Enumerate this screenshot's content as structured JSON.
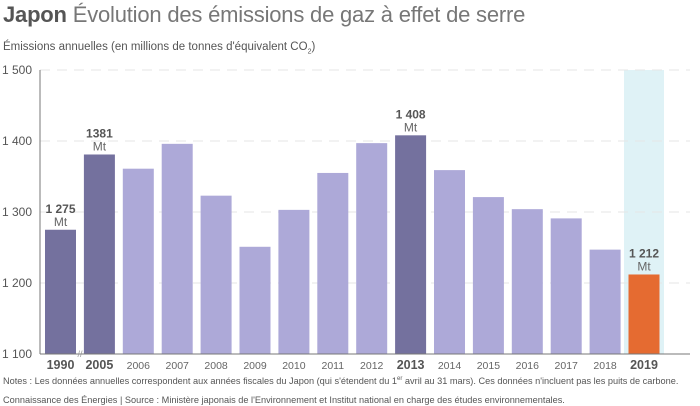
{
  "title": {
    "country": "Japon",
    "text": "Évolution des émissions de gaz à effet de serre"
  },
  "subtitle": {
    "text": "Émissions annuelles (en millions de tonnes d'équivalent CO",
    "subscript": "2",
    "close": ")"
  },
  "notes": {
    "prefix": "Notes : Les données annuelles correspondent aux années fiscales du Japon (qui s'étendent du 1",
    "sup": "er",
    "suffix": " avril au 31 mars). Ces données n'incluent pas les puits de carbone."
  },
  "source": "Connaissance des Énergies | Source : Ministère japonais de l'Environnement et Institut national en charge des études environnementales.",
  "colors": {
    "reference": "#74719e",
    "normal": "#ada9d8",
    "latest": "#e56b31",
    "highlight_band": "#dff2f6",
    "grid": "#e6e6e6",
    "axis": "#777777"
  },
  "chart_data": {
    "type": "bar",
    "title": "Japon Évolution des émissions de gaz à effet de serre",
    "ylabel": "Émissions annuelles (en millions de tonnes d'équivalent CO2)",
    "xlabel": "",
    "ylim": [
      1100,
      1500
    ],
    "yticks": [
      1100,
      1200,
      1300,
      1400,
      1500
    ],
    "ytick_labels": [
      "1 100",
      "1 200",
      "1 300",
      "1 400",
      "1 500"
    ],
    "grid": "horizontal-dashed",
    "axis_break_after": "1990",
    "categories": [
      "1990",
      "2005",
      "2006",
      "2007",
      "2008",
      "2009",
      "2010",
      "2011",
      "2012",
      "2013",
      "2014",
      "2015",
      "2016",
      "2017",
      "2018",
      "2019"
    ],
    "values": [
      1275,
      1381,
      1361,
      1396,
      1323,
      1251,
      1303,
      1355,
      1397,
      1408,
      1359,
      1321,
      1304,
      1291,
      1247,
      1212
    ],
    "bar_kind": [
      "reference",
      "reference",
      "normal",
      "normal",
      "normal",
      "normal",
      "normal",
      "normal",
      "normal",
      "reference",
      "normal",
      "normal",
      "normal",
      "normal",
      "normal",
      "latest"
    ],
    "bold_ticks": [
      "1990",
      "2005",
      "2013",
      "2019"
    ],
    "highlighted": "2019",
    "data_labels": [
      {
        "category": "1990",
        "value": "1 275",
        "unit": "Mt"
      },
      {
        "category": "2005",
        "value": "1381",
        "unit": "Mt"
      },
      {
        "category": "2013",
        "value": "1 408",
        "unit": "Mt"
      },
      {
        "category": "2019",
        "value": "1 212",
        "unit": "Mt"
      }
    ],
    "break_marker": "//"
  }
}
